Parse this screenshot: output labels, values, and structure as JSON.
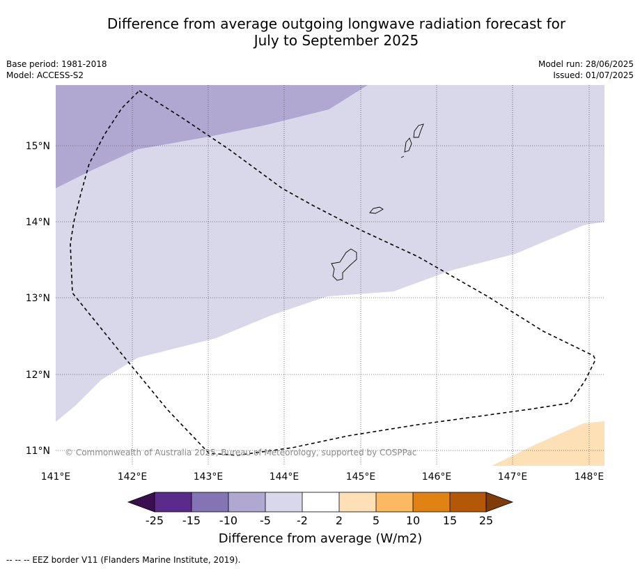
{
  "title_line1": "Difference from average outgoing longwave radiation forecast for",
  "title_line2": "July to September 2025",
  "base_period": "Base period: 1981-2018",
  "model": "Model: ACCESS-S2",
  "model_run": "Model run: 28/06/2025",
  "issued": "Issued: 01/07/2025",
  "copyright": "© Commonwealth of Australia 2025, Bureau of Meteorology, supported by COSPPac",
  "footer_note": "--  --  -- EEZ border V11 (Flanders Marine Institute, 2019).",
  "map": {
    "lat_labels": [
      "15°N",
      "14°N",
      "13°N",
      "12°N",
      "11°N"
    ],
    "lon_labels": [
      "141°E",
      "142°E",
      "143°E",
      "144°E",
      "145°E",
      "146°E",
      "147°E",
      "148°E"
    ]
  },
  "colorbar": {
    "title": "Difference from average (W/m2)",
    "ticks": [
      "-25",
      "-15",
      "-10",
      "-5",
      "-2",
      "2",
      "5",
      "10",
      "15",
      "25"
    ],
    "colors": {
      "below_min": "#3b0f4f",
      "bins": [
        "#5a2a8c",
        "#8374b3",
        "#b0a8d1",
        "#d8d8ea",
        "#ffffff",
        "#fde0b6",
        "#fdb863",
        "#e08214",
        "#b35806"
      ],
      "above_max": "#7f3b08"
    }
  }
}
